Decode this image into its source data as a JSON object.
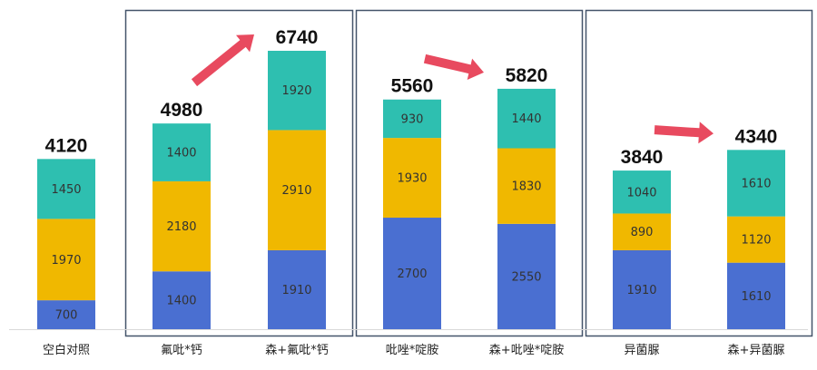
{
  "chart_data": {
    "type": "bar",
    "stacked": true,
    "title": "",
    "xlabel": "",
    "ylabel": "",
    "ylim": [
      0,
      6740
    ],
    "grid": false,
    "legend": "none",
    "categories": [
      "空白对照",
      "氟吡*钙",
      "森+氟吡*钙",
      "吡唑*啶胺",
      "森+吡唑*啶胺",
      "异菌脲",
      "森+异菌脲"
    ],
    "series": [
      {
        "color": "#4a6fd1",
        "values": [
          700,
          1400,
          1910,
          2700,
          2550,
          1910,
          1610
        ]
      },
      {
        "color": "#f0b800",
        "values": [
          1970,
          2180,
          2910,
          1930,
          1830,
          890,
          1120
        ]
      },
      {
        "color": "#2ebfb0",
        "values": [
          1450,
          1400,
          1920,
          930,
          1440,
          1040,
          1610
        ]
      }
    ],
    "totals": [
      4120,
      4980,
      6740,
      5560,
      5820,
      3840,
      4340
    ],
    "groups": [
      {
        "members": [
          1,
          2
        ]
      },
      {
        "members": [
          3,
          4
        ]
      },
      {
        "members": [
          5,
          6
        ]
      }
    ],
    "annotations": [
      {
        "kind": "up-arrow",
        "from": 1,
        "to": 2,
        "color": "#e84a5f"
      },
      {
        "kind": "up-arrow",
        "from": 3,
        "to": 4,
        "color": "#e84a5f"
      },
      {
        "kind": "up-arrow",
        "from": 5,
        "to": 6,
        "color": "#e84a5f"
      }
    ]
  }
}
